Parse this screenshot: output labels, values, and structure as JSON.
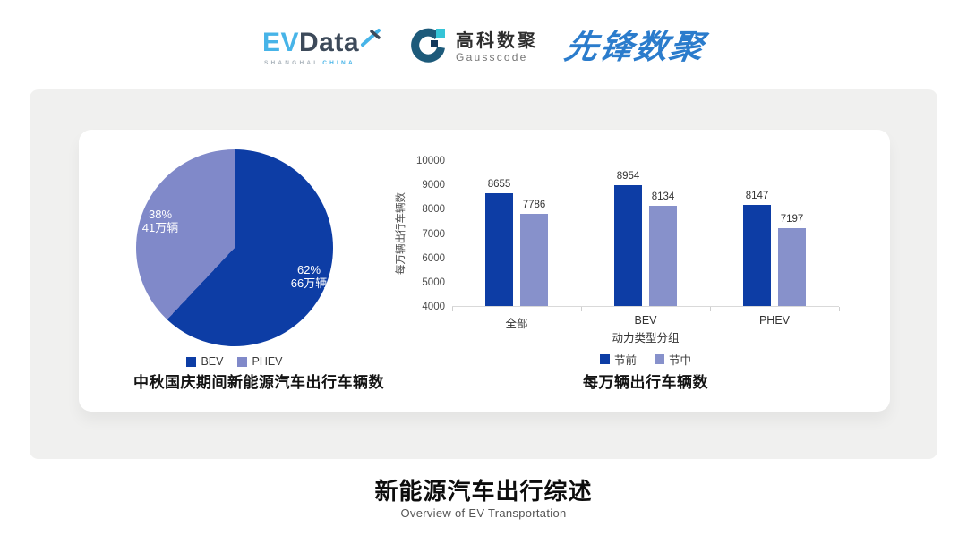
{
  "header": {
    "evdata": {
      "ev": "EV",
      "data": "Data",
      "shanghai": "SHANGHAI",
      "china": "CHINA"
    },
    "gausscode": {
      "name_cn": "高科数聚",
      "name_en": "Gausscode"
    },
    "pioneer": {
      "name": "先锋数聚"
    }
  },
  "colors": {
    "series_dark_blue": "#0d3da5",
    "series_light_purple": "#8791cb",
    "panel_gray": "#f0f0ef"
  },
  "chart_data": [
    {
      "type": "pie",
      "title": "中秋国庆期间新能源汽车出行车辆数",
      "legend_position": "bottom",
      "slices": [
        {
          "label": "BEV",
          "percent": 62,
          "percent_label": "62%",
          "value_label": "66万辆",
          "color": "#0d3da5"
        },
        {
          "label": "PHEV",
          "percent": 38,
          "percent_label": "38%",
          "value_label": "41万辆",
          "color": "#8089c9"
        }
      ]
    },
    {
      "type": "bar",
      "title": "每万辆出行车辆数",
      "categories": [
        "全部",
        "BEV",
        "PHEV"
      ],
      "series": [
        {
          "name": "节前",
          "color": "#0d3da5",
          "values": [
            8655,
            8954,
            8147
          ]
        },
        {
          "name": "节中",
          "color": "#8791cb",
          "values": [
            7786,
            8134,
            7197
          ]
        }
      ],
      "xlabel": "动力类型分组",
      "ylabel": "每万辆出行车辆数",
      "ylim": [
        4000,
        10000
      ],
      "ytick_step": 1000,
      "grid": false,
      "legend_position": "bottom"
    }
  ],
  "footer": {
    "title": "新能源汽车出行综述",
    "subtitle": "Overview of EV Transportation"
  }
}
